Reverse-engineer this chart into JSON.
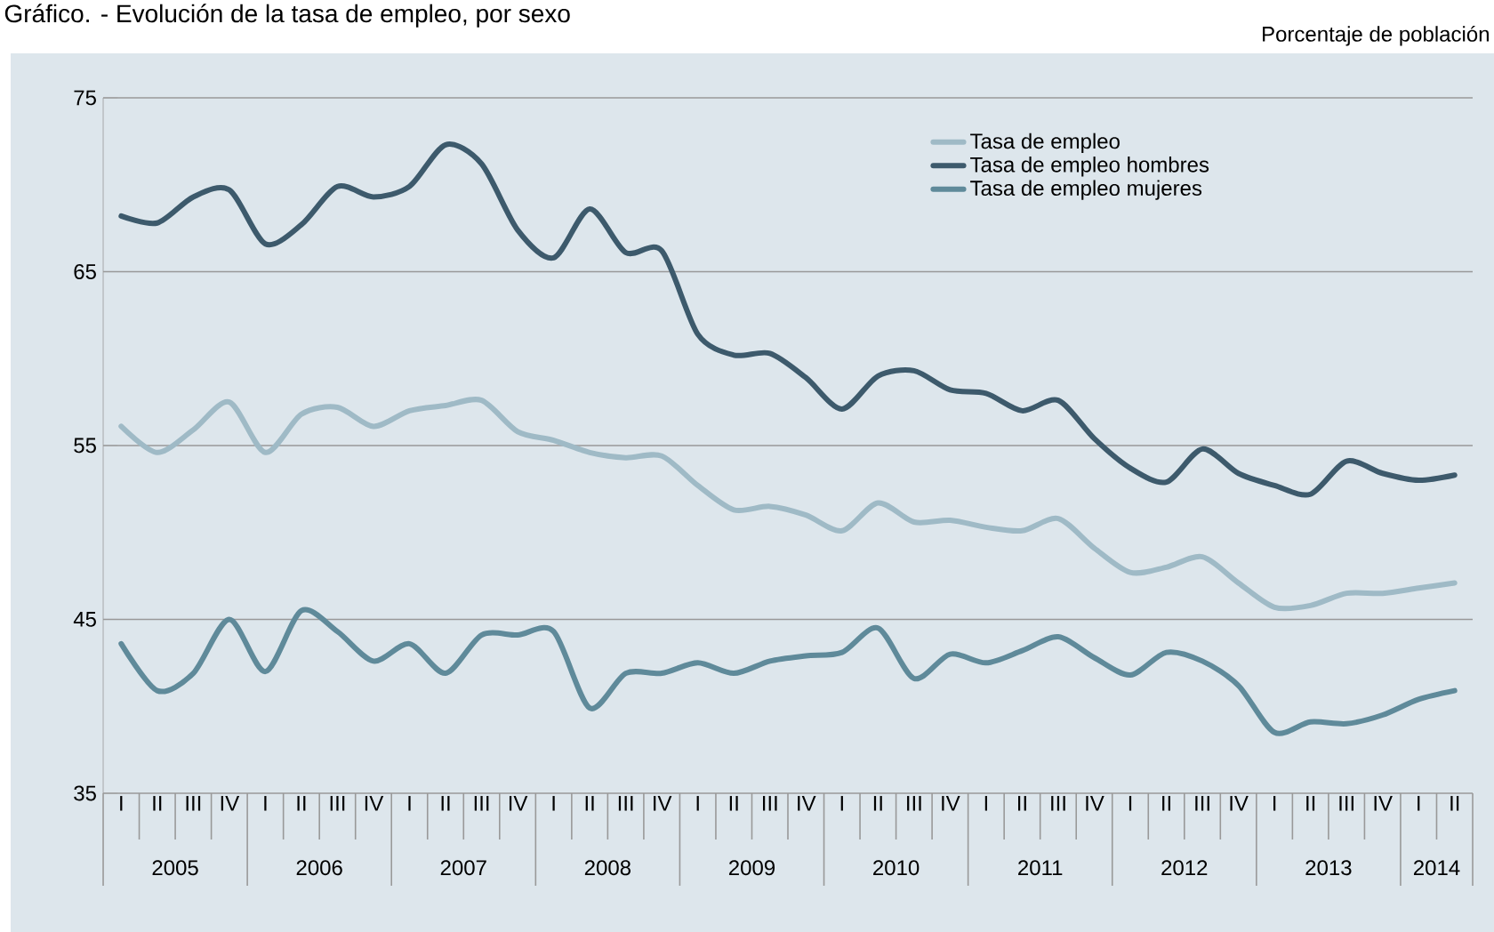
{
  "chart_data": {
    "type": "line",
    "title": "Gráfico. - Evolución de la tasa de empleo, por sexo",
    "ylabel": "Porcentaje de población",
    "categories": [
      "I",
      "II",
      "III",
      "IV",
      "I",
      "II",
      "III",
      "IV",
      "I",
      "II",
      "III",
      "IV",
      "I",
      "II",
      "III",
      "IV",
      "I",
      "II",
      "III",
      "IV",
      "I",
      "II",
      "III",
      "IV",
      "I",
      "II",
      "III",
      "IV",
      "I",
      "II",
      "III",
      "IV",
      "I",
      "II",
      "III",
      "IV",
      "I",
      "II"
    ],
    "series": [
      {
        "name": "Tasa de empleo",
        "color": "#9fbac6",
        "values": [
          56.1,
          54.6,
          55.9,
          57.5,
          54.6,
          56.8,
          57.2,
          56.1,
          57.0,
          57.3,
          57.6,
          55.8,
          55.3,
          54.6,
          54.3,
          54.4,
          52.7,
          51.3,
          51.5,
          51.0,
          50.1,
          51.7,
          50.6,
          50.7,
          50.3,
          50.1,
          50.8,
          49.1,
          47.7,
          48.0,
          48.6,
          47.1,
          45.7,
          45.8,
          46.5,
          46.5,
          46.8,
          47.1
        ]
      },
      {
        "name": "Tasa de empleo hombres",
        "color": "#3d5a6c",
        "values": [
          68.2,
          67.8,
          69.3,
          69.7,
          66.6,
          67.7,
          69.9,
          69.3,
          69.9,
          72.3,
          71.2,
          67.4,
          65.8,
          68.6,
          66.1,
          66.2,
          61.4,
          60.2,
          60.3,
          58.9,
          57.1,
          59.0,
          59.3,
          58.2,
          58.0,
          57.0,
          57.6,
          55.4,
          53.7,
          52.9,
          54.8,
          53.4,
          52.7,
          52.2,
          54.1,
          53.4,
          53.0,
          53.3
        ]
      },
      {
        "name": "Tasa de empleo mujeres",
        "color": "#5f8a9a",
        "values": [
          43.6,
          40.9,
          41.9,
          45.0,
          42.0,
          45.5,
          44.3,
          42.6,
          43.6,
          41.9,
          44.1,
          44.1,
          44.3,
          39.9,
          41.9,
          41.9,
          42.5,
          41.9,
          42.6,
          42.9,
          43.1,
          44.5,
          41.6,
          43.0,
          42.5,
          43.2,
          44.0,
          42.8,
          41.8,
          43.1,
          42.6,
          41.2,
          38.5,
          39.1,
          39.0,
          39.5,
          40.4,
          40.9
        ]
      }
    ],
    "ylim": [
      35,
      75
    ],
    "yticks": [
      35,
      45,
      55,
      65,
      75
    ],
    "grid": "y",
    "legend": "top right",
    "annotations": [
      "2005",
      "2006",
      "2007",
      "2008",
      "2009",
      "2010",
      "2011",
      "2012",
      "2013",
      "2014"
    ]
  }
}
